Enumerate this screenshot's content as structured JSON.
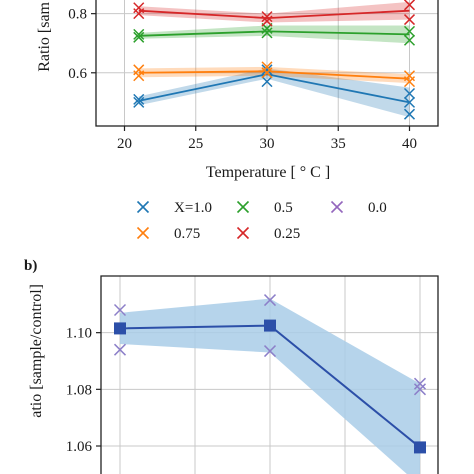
{
  "colors": {
    "x_1_0": "#1f77b4",
    "x_0_75": "#ff7f0e",
    "x_0_5": "#2ca02c",
    "x_0_25": "#d62728",
    "x_0_0": "#9467bd",
    "panel_b_line": "#2c4fa8",
    "panel_b_band": "#a9cce8",
    "panel_b_marker": "#8c7fc9"
  },
  "chart_data": [
    {
      "type": "line",
      "panel": "a",
      "title": "",
      "xlabel": "Temperature [ ° C ]",
      "ylabel": "Ratio [sam",
      "xlim": [
        18,
        42
      ],
      "ylim": [
        0.42,
        0.88
      ],
      "xticks": [
        "20",
        "25",
        "30",
        "35",
        "40"
      ],
      "yticks": [
        "0.6",
        "0.8"
      ],
      "grid": true,
      "x": [
        21,
        30,
        40
      ],
      "series": [
        {
          "name": "X=1.0",
          "color_key": "x_1_0",
          "mean": [
            0.505,
            0.595,
            0.5
          ],
          "band": [
            [
              0.49,
              0.52
            ],
            [
              0.58,
              0.615
            ],
            [
              0.45,
              0.55
            ]
          ],
          "samples": [
            [
              21,
              0.5
            ],
            [
              21,
              0.51
            ],
            [
              30,
              0.57
            ],
            [
              30,
              0.61
            ],
            [
              40,
              0.46
            ],
            [
              40,
              0.5
            ],
            [
              40,
              0.53
            ]
          ]
        },
        {
          "name": "0.75",
          "color_key": "x_0_75",
          "mean": [
            0.6,
            0.605,
            0.58
          ],
          "band": [
            [
              0.585,
              0.615
            ],
            [
              0.59,
              0.62
            ],
            [
              0.565,
              0.595
            ]
          ],
          "samples": [
            [
              21,
              0.59
            ],
            [
              21,
              0.61
            ],
            [
              30,
              0.6
            ],
            [
              30,
              0.62
            ],
            [
              40,
              0.57
            ],
            [
              40,
              0.59
            ]
          ]
        },
        {
          "name": "0.5",
          "color_key": "x_0_5",
          "mean": [
            0.725,
            0.74,
            0.73
          ],
          "band": [
            [
              0.715,
              0.735
            ],
            [
              0.725,
              0.76
            ],
            [
              0.7,
              0.76
            ]
          ],
          "samples": [
            [
              21,
              0.72
            ],
            [
              21,
              0.73
            ],
            [
              30,
              0.735
            ],
            [
              30,
              0.75
            ],
            [
              40,
              0.71
            ],
            [
              40,
              0.74
            ]
          ]
        },
        {
          "name": "0.25",
          "color_key": "x_0_25",
          "mean": [
            0.81,
            0.785,
            0.81
          ],
          "band": [
            [
              0.795,
              0.825
            ],
            [
              0.77,
              0.8
            ],
            [
              0.78,
              0.84
            ]
          ],
          "samples": [
            [
              21,
              0.8
            ],
            [
              21,
              0.82
            ],
            [
              30,
              0.775
            ],
            [
              30,
              0.79
            ],
            [
              40,
              0.78
            ],
            [
              40,
              0.83
            ]
          ]
        },
        {
          "name": "0.0",
          "color_key": "x_0_0",
          "mean": [],
          "band": [],
          "samples": []
        }
      ],
      "legend": {
        "placement": "bottom",
        "columns": 3
      }
    },
    {
      "type": "line",
      "panel": "b",
      "panel_label": "b)",
      "title": "",
      "xlabel": "",
      "ylabel": "atio [sample/control]",
      "ylim": [
        1.048,
        1.12
      ],
      "yticks": [
        "1.06",
        "1.08",
        "1.10"
      ],
      "grid": true,
      "x": [
        21,
        30,
        40
      ],
      "series": [
        {
          "name": "",
          "color_key": "panel_b_line",
          "mean": [
            1.1015,
            1.1025,
            1.0595
          ],
          "band": [
            [
              1.096,
              1.107
            ],
            [
              1.093,
              1.112
            ],
            [
              1.046,
              1.082
            ]
          ],
          "samples": [
            [
              21,
              1.094
            ],
            [
              21,
              1.108
            ],
            [
              30,
              1.0935
            ],
            [
              30,
              1.1115
            ],
            [
              40,
              1.08
            ],
            [
              40,
              1.082
            ]
          ]
        }
      ]
    }
  ]
}
